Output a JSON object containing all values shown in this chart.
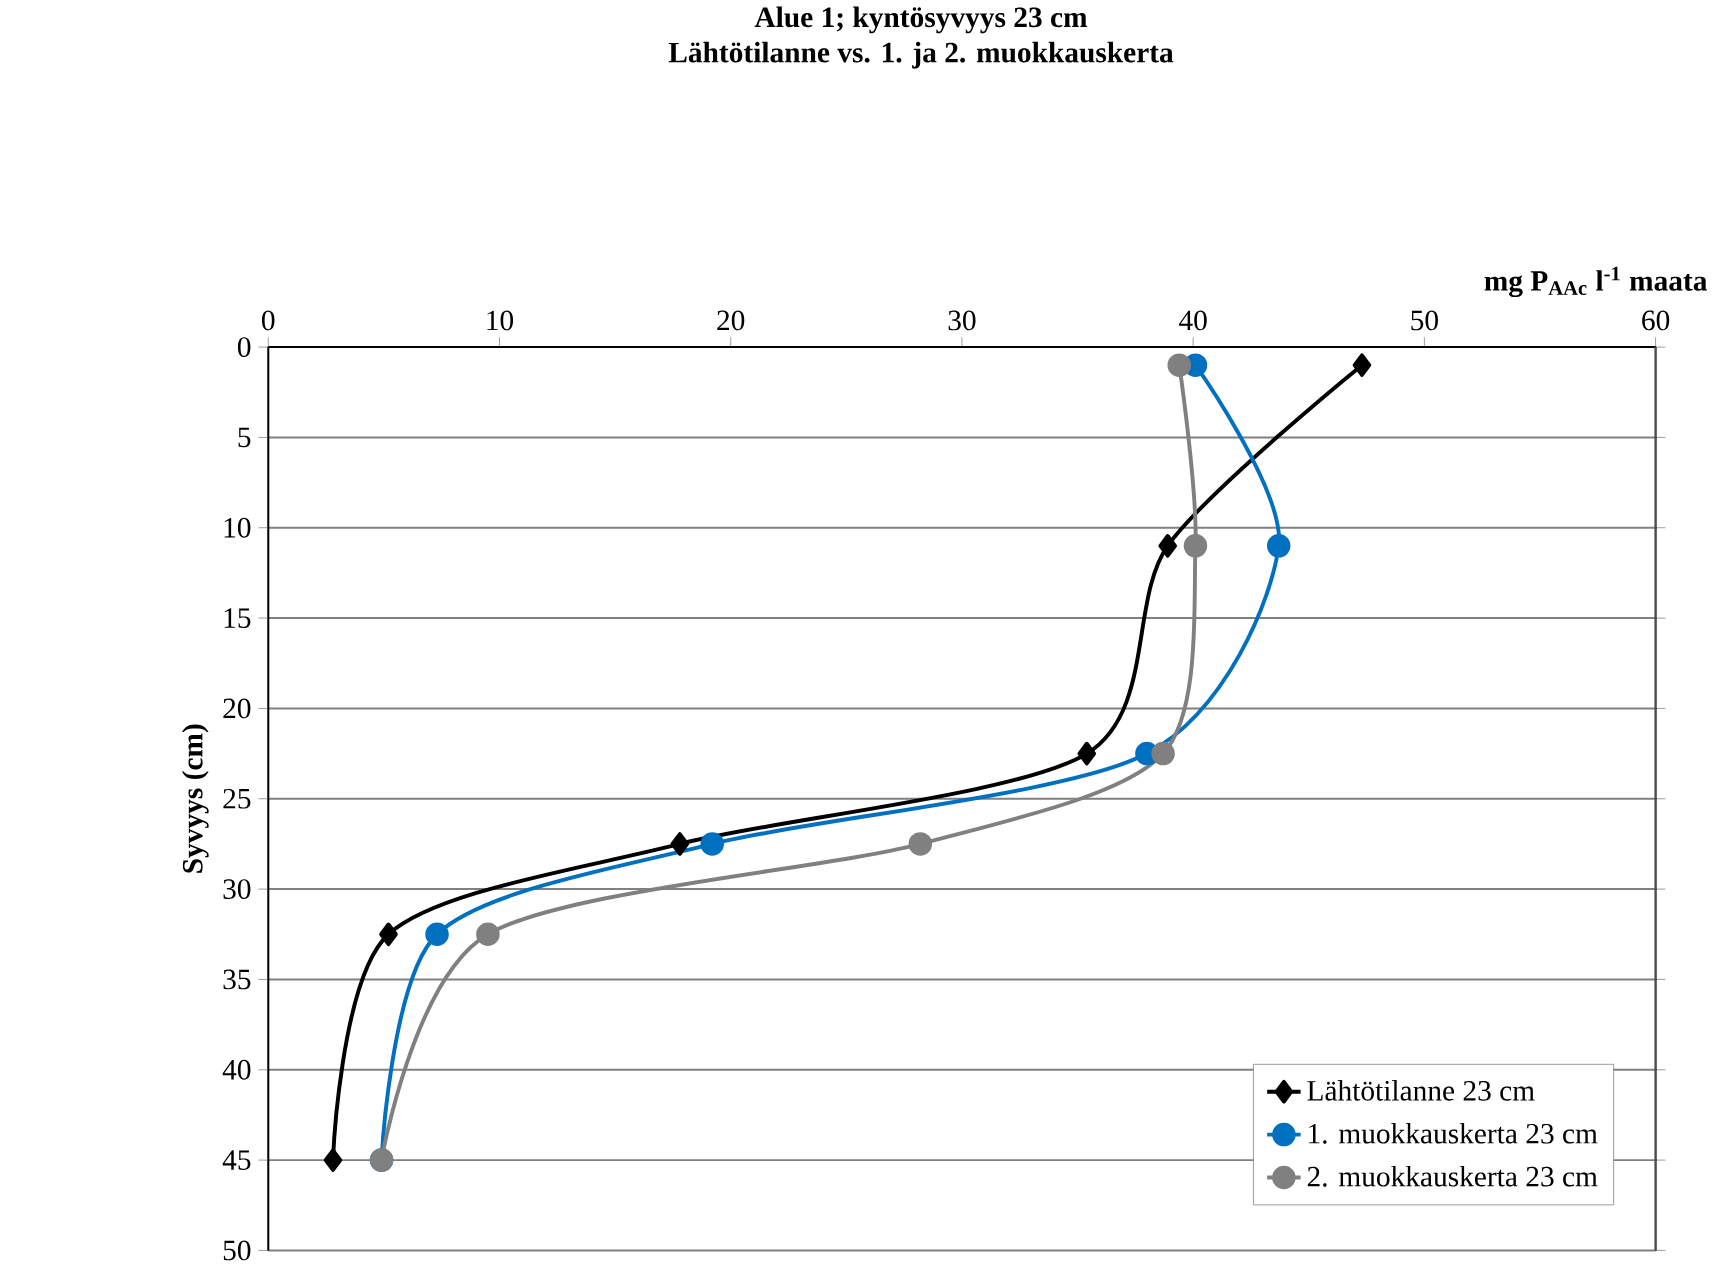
{
  "chart_data": {
    "type": "line",
    "title": "Alue 1; kyntösyvyys 23 cm",
    "subtitle": "Lähtötilanne vs. 1. ja 2. muokkauskerta",
    "xlabel": "mg P$_{AAc}$ l$^{-1}$ maata",
    "ylabel": "Syvyys (cm)",
    "xlim": [
      0,
      60
    ],
    "xticks": [
      0,
      10,
      20,
      30,
      40,
      50,
      60
    ],
    "ylim": [
      50,
      0
    ],
    "yticks": [
      0,
      5,
      10,
      15,
      20,
      25,
      30,
      35,
      40,
      45,
      50
    ],
    "grid": "y",
    "legend": "bottom right",
    "series": [
      {
        "name": "Lähtötilanne 23 cm",
        "color": "#000000",
        "marker": "diamond",
        "x": [
          47.3,
          38.9,
          35.4,
          17.8,
          5.2,
          2.8
        ],
        "values": [
          1,
          11,
          22.5,
          27.5,
          32.5,
          45
        ]
      },
      {
        "name": "1. muokkauskerta 23 cm",
        "color": "#0070c0",
        "marker": "circle",
        "x": [
          40.1,
          43.7,
          38.0,
          19.2,
          7.3,
          4.9
        ],
        "values": [
          1,
          11,
          22.5,
          27.5,
          32.5,
          45
        ]
      },
      {
        "name": "2. muokkauskerta 23 cm",
        "color": "#808080",
        "marker": "circle",
        "x": [
          39.4,
          40.1,
          38.7,
          28.2,
          9.5,
          4.9
        ],
        "values": [
          1,
          11,
          22.5,
          27.5,
          32.5,
          45
        ]
      }
    ]
  }
}
